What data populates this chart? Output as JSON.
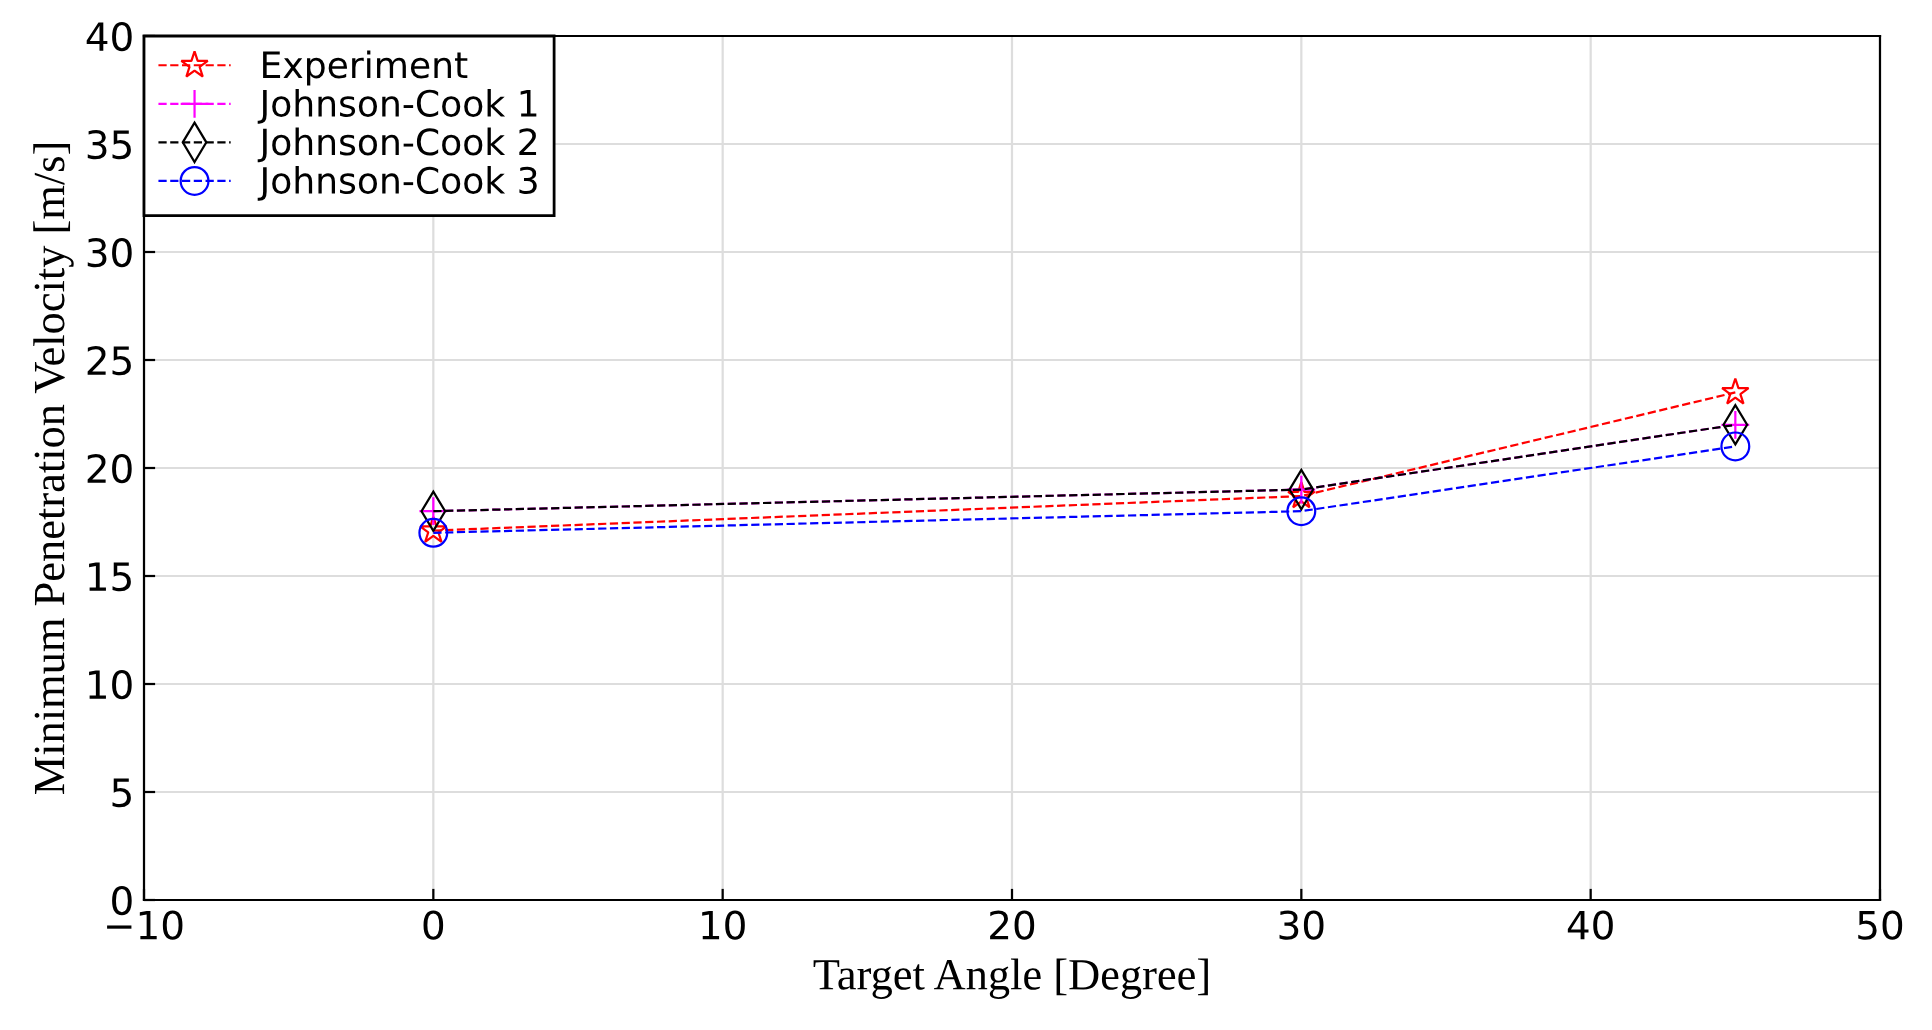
{
  "chart_data": {
    "type": "line",
    "xlabel": "Target Angle [Degree]",
    "ylabel": "Minimum Penetration Velocity [m/s]",
    "x": [
      0,
      30,
      45
    ],
    "series": [
      {
        "name": "Experiment",
        "color": "#ff0000",
        "marker": "star",
        "values": [
          17.1,
          18.7,
          23.5
        ]
      },
      {
        "name": "Johnson-Cook 1",
        "color": "#ff00ff",
        "marker": "cross",
        "values": [
          18,
          19,
          22
        ]
      },
      {
        "name": "Johnson-Cook 2",
        "color": "#000000",
        "marker": "diamond",
        "values": [
          18,
          19,
          22
        ]
      },
      {
        "name": "Johnson-Cook 3",
        "color": "#0000ff",
        "marker": "circle",
        "values": [
          17,
          18,
          21
        ]
      }
    ],
    "xlim": [
      -10,
      50
    ],
    "xticks": [
      {
        "value": -10,
        "label": "−10"
      },
      0,
      10,
      20,
      30,
      40,
      50
    ],
    "ylim": [
      0,
      40
    ],
    "yticks": [
      0,
      5,
      10,
      15,
      20,
      25,
      30,
      35,
      40
    ],
    "grid": true,
    "legend": "top left",
    "line_style": "dashed"
  }
}
